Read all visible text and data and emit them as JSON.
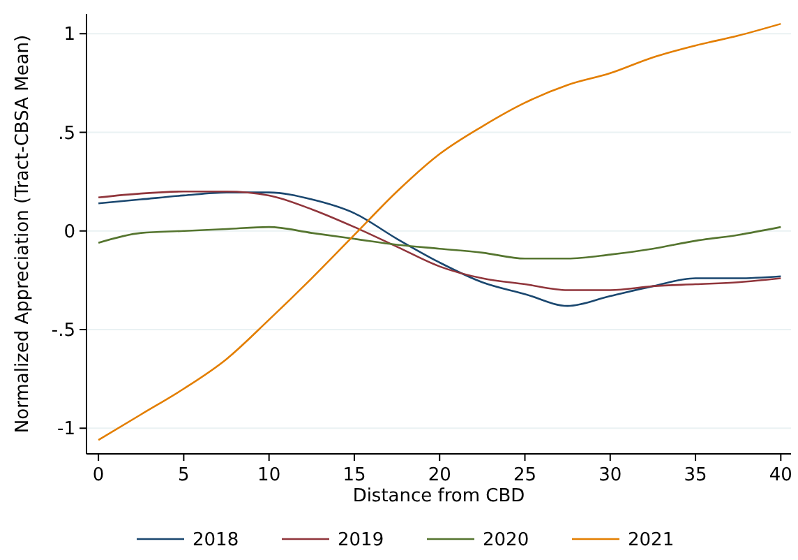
{
  "chart_data": {
    "type": "line",
    "xlabel": "Distance from CBD",
    "ylabel": "Normalized Appreciation (Tract-CBSA Mean)",
    "x": [
      0,
      2.5,
      5,
      7.5,
      10,
      12.5,
      15,
      17.5,
      20,
      22.5,
      25,
      27.5,
      30,
      32.5,
      35,
      37.5,
      40
    ],
    "series": [
      {
        "name": "2018",
        "color": "#1a476f",
        "values": [
          0.14,
          0.16,
          0.18,
          0.195,
          0.195,
          0.16,
          0.09,
          -0.04,
          -0.16,
          -0.26,
          -0.32,
          -0.38,
          -0.33,
          -0.28,
          -0.24,
          -0.24,
          -0.23
        ]
      },
      {
        "name": "2019",
        "color": "#90353b",
        "values": [
          0.17,
          0.19,
          0.2,
          0.2,
          0.18,
          0.11,
          0.02,
          -0.08,
          -0.18,
          -0.24,
          -0.27,
          -0.3,
          -0.3,
          -0.28,
          -0.27,
          -0.26,
          -0.24
        ]
      },
      {
        "name": "2020",
        "color": "#55752f",
        "values": [
          -0.06,
          -0.01,
          0,
          0.01,
          0.02,
          -0.01,
          -0.04,
          -0.07,
          -0.09,
          -0.11,
          -0.14,
          -0.14,
          -0.12,
          -0.09,
          -0.05,
          -0.02,
          0.02
        ]
      },
      {
        "name": "2021",
        "color": "#e37e00",
        "values": [
          -1.06,
          -0.93,
          -0.8,
          -0.65,
          -0.45,
          -0.24,
          -0.02,
          0.2,
          0.39,
          0.53,
          0.65,
          0.74,
          0.8,
          0.88,
          0.94,
          0.99,
          1.05
        ]
      }
    ],
    "xlim": [
      -0.7,
      40.6
    ],
    "xticks": [
      0,
      5,
      10,
      15,
      20,
      25,
      30,
      35,
      40
    ],
    "ylim": [
      -1.13,
      1.1
    ],
    "yticks": [
      {
        "value": -1,
        "label": "-1"
      },
      {
        "value": -0.5,
        "label": "-.5"
      },
      {
        "value": 0,
        "label": "0"
      },
      {
        "value": 0.5,
        "label": ".5"
      },
      {
        "value": 1,
        "label": "1"
      }
    ],
    "grid": "y",
    "legend": "bottom",
    "marker": "none",
    "line_style": "solid"
  }
}
